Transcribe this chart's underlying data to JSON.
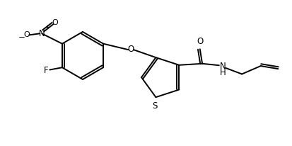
{
  "background": "#ffffff",
  "line_color": "#000000",
  "line_width": 1.4,
  "font_size": 8.5,
  "figsize": [
    4.14,
    2.06
  ],
  "dpi": 100,
  "xlim": [
    0,
    10.0
  ],
  "ylim": [
    0,
    5.0
  ]
}
